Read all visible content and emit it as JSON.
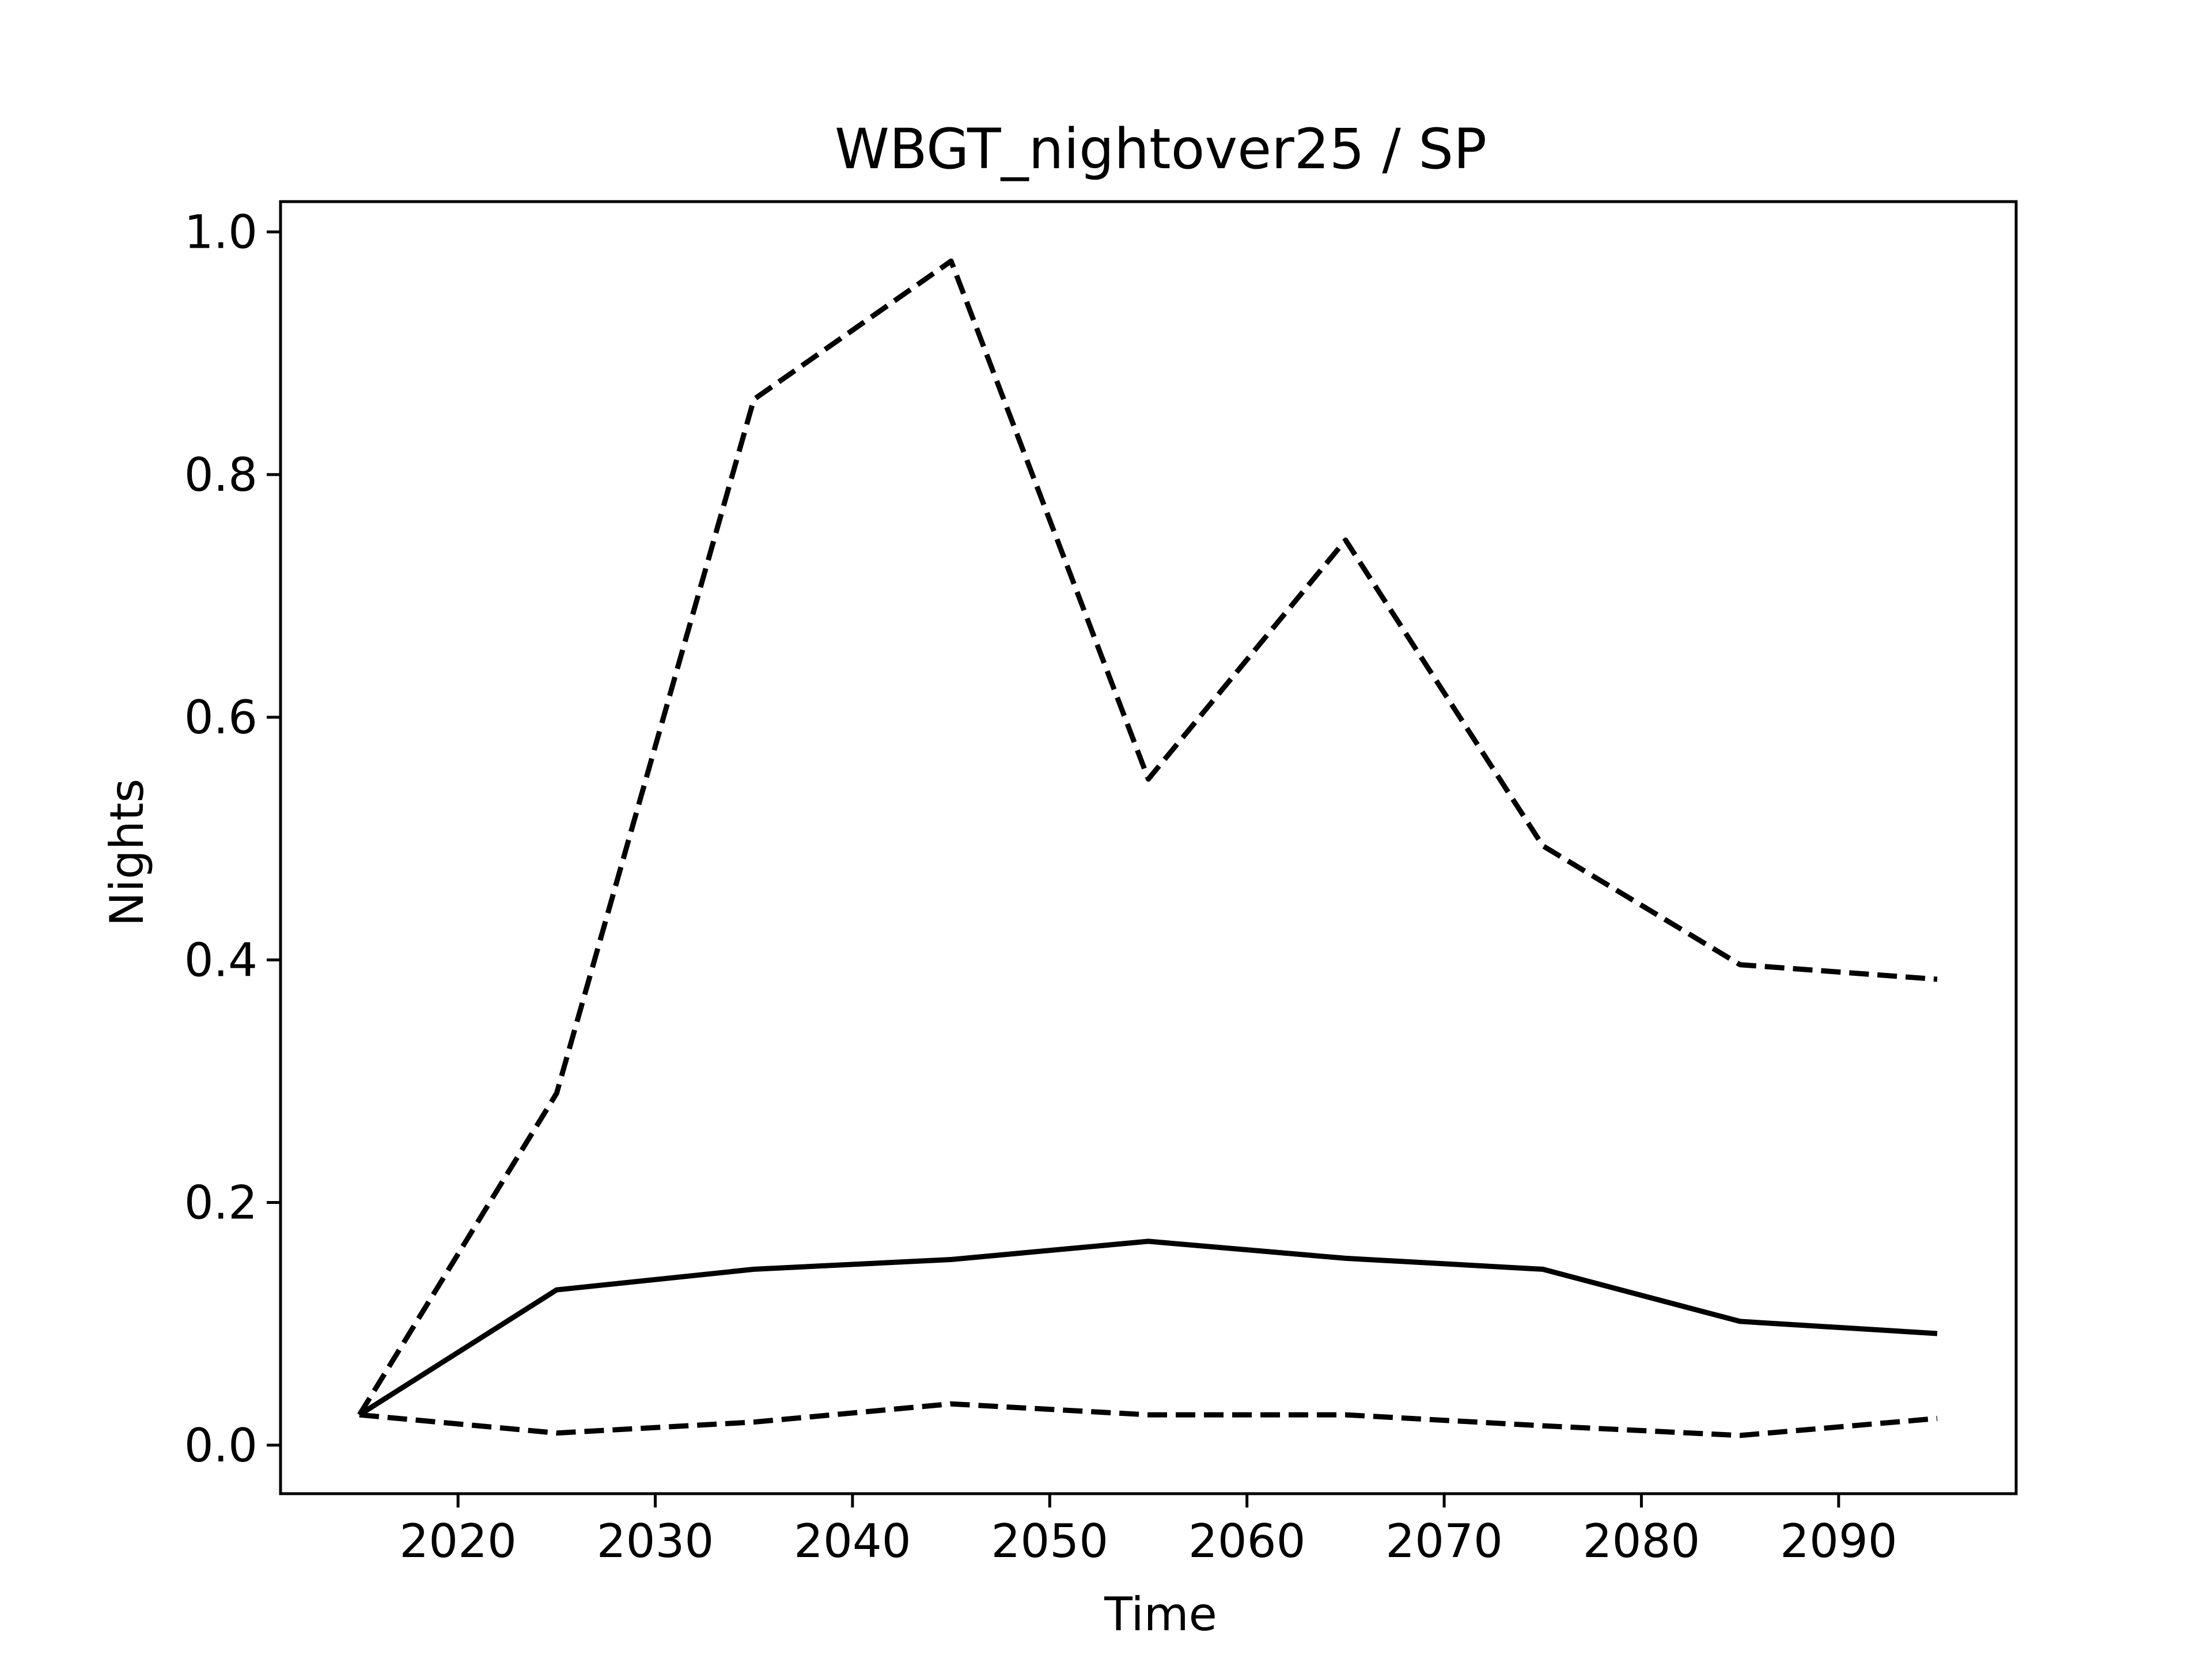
{
  "chart_data": {
    "type": "line",
    "title": "WBGT_nightover25 / SP",
    "xlabel": "Time",
    "ylabel": "Nights",
    "xlim": [
      2011,
      2099
    ],
    "ylim": [
      -0.04,
      1.025
    ],
    "xticks": [
      2020,
      2030,
      2040,
      2050,
      2060,
      2070,
      2080,
      2090
    ],
    "xtick_labels": [
      "2020",
      "2030",
      "2040",
      "2050",
      "2060",
      "2070",
      "2080",
      "2090"
    ],
    "yticks": [
      0.0,
      0.2,
      0.4,
      0.6,
      0.8,
      1.0
    ],
    "ytick_labels": [
      "0.0",
      "0.2",
      "0.4",
      "0.6",
      "0.8",
      "1.0"
    ],
    "grid": false,
    "x": [
      2015,
      2025,
      2035,
      2045,
      2055,
      2065,
      2075,
      2085,
      2095
    ],
    "series": [
      {
        "style": "dashed",
        "color": "#000000",
        "values": [
          0.025,
          0.29,
          0.862,
          0.976,
          0.549,
          0.746,
          0.494,
          0.396,
          0.384
        ]
      },
      {
        "style": "solid",
        "color": "#000000",
        "values": [
          0.025,
          0.128,
          0.145,
          0.153,
          0.168,
          0.154,
          0.145,
          0.102,
          0.092
        ]
      },
      {
        "style": "dashed",
        "color": "#000000",
        "values": [
          0.025,
          0.01,
          0.019,
          0.034,
          0.025,
          0.025,
          0.016,
          0.008,
          0.022
        ]
      }
    ]
  }
}
